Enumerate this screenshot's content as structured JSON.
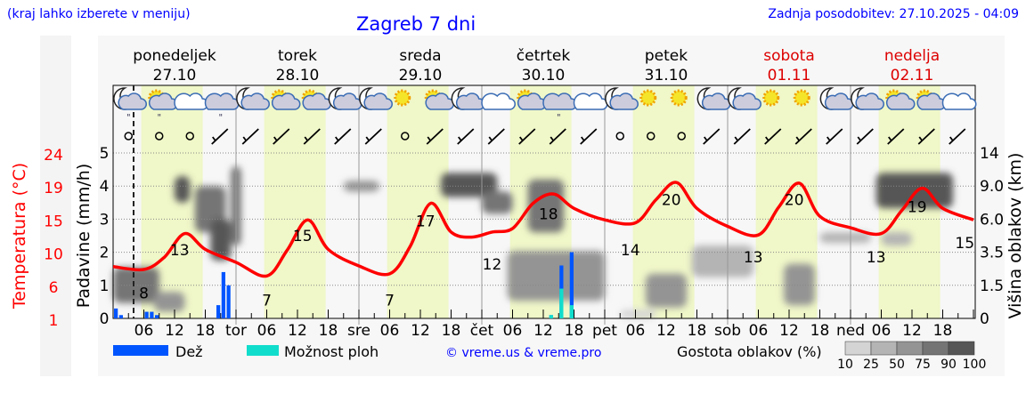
{
  "header": {
    "hint": "(kraj lahko izberete v meniju)",
    "title": "Zagreb 7 dni",
    "updated": "Zadnja posodobitev: 27.10.2025 - 04:09"
  },
  "days": [
    {
      "name": "ponedeljek",
      "date": "27.10",
      "weekend": false
    },
    {
      "name": "torek",
      "date": "28.10",
      "weekend": false
    },
    {
      "name": "sreda",
      "date": "29.10",
      "weekend": false
    },
    {
      "name": "četrtek",
      "date": "30.10",
      "weekend": false
    },
    {
      "name": "petek",
      "date": "31.10",
      "weekend": false
    },
    {
      "name": "sobota",
      "date": "01.11",
      "weekend": true
    },
    {
      "name": "nedelja",
      "date": "02.11",
      "weekend": true
    }
  ],
  "colors": {
    "temperature": "#ff0000",
    "rain": "#0055ff",
    "shower_chance": "#11ddcc",
    "daylight": "#f0f7c8",
    "weekend": "#dd0000",
    "link": "#0000ff"
  },
  "weather_icons": [
    "moon-cloud-rain",
    "sun-cloud-rain",
    "cloud",
    "cloud-rain",
    "moon-cloud",
    "sun-cloud",
    "sun-cloud",
    "moon-cloud",
    "moon-cloud",
    "sun",
    "sun-cloud",
    "moon-cloud",
    "cloud",
    "sun-cloud",
    "cloud-rain",
    "cloud",
    "moon-cloud",
    "sun",
    "sun",
    "moon-cloud",
    "moon-cloud",
    "sun",
    "sun",
    "moon-cloud",
    "moon-cloud",
    "sun-cloud",
    "sun-cloud",
    "cloud"
  ],
  "chart_data": {
    "type": "line",
    "now_hour": 4,
    "x_ticks": [
      "06",
      "12",
      "18",
      "tor",
      "06",
      "12",
      "18",
      "sre",
      "06",
      "12",
      "18",
      "čet",
      "06",
      "12",
      "18",
      "pet",
      "06",
      "12",
      "18",
      "sob",
      "06",
      "12",
      "18",
      "ned",
      "06",
      "12",
      "18"
    ],
    "left_axis_temp": {
      "label": "Temperatura (°C)",
      "ticks": [
        "24",
        "19",
        "15",
        "10",
        "6",
        "1"
      ],
      "range": [
        1,
        24
      ]
    },
    "left_axis_precip": {
      "label": "Padavine (mm/h)",
      "ticks": [
        "5",
        "4",
        "3",
        "2",
        "1",
        "0"
      ],
      "range": [
        0,
        5
      ]
    },
    "right_axis": {
      "label": "Višina oblakov (km)",
      "ticks": [
        "14",
        "9.0",
        "6.0",
        "3.5",
        "1.5",
        "0"
      ]
    },
    "grid": true,
    "temperature": {
      "hours": [
        0,
        6,
        10,
        14,
        18,
        24,
        30,
        34,
        38,
        42,
        48,
        54,
        58,
        62,
        66,
        70,
        74,
        78,
        82,
        86,
        90,
        96,
        102,
        106,
        110,
        114,
        120,
        126,
        130,
        134,
        138,
        144,
        150,
        154,
        158,
        162,
        168
      ],
      "values": [
        8.2,
        7.8,
        9.5,
        12.8,
        10.6,
        8.8,
        6.9,
        10.5,
        14.7,
        10.6,
        8.3,
        7.2,
        11,
        17,
        13,
        12.3,
        13,
        13.5,
        17,
        18.3,
        16.3,
        14.7,
        14.3,
        17.5,
        19.9,
        16.3,
        13.8,
        12.6,
        16.5,
        19.8,
        15.2,
        13.6,
        12.8,
        16,
        19.1,
        16.3,
        14.7
      ]
    },
    "temperature_labels": [
      {
        "hour": 6,
        "text": "8"
      },
      {
        "hour": 13,
        "text": "13"
      },
      {
        "hour": 30,
        "text": "7"
      },
      {
        "hour": 37,
        "text": "15"
      },
      {
        "hour": 54,
        "text": "7"
      },
      {
        "hour": 61,
        "text": "17"
      },
      {
        "hour": 74,
        "text": "12"
      },
      {
        "hour": 85,
        "text": "18"
      },
      {
        "hour": 101,
        "text": "14"
      },
      {
        "hour": 109,
        "text": "20"
      },
      {
        "hour": 125,
        "text": "13"
      },
      {
        "hour": 133,
        "text": "20"
      },
      {
        "hour": 149,
        "text": "13"
      },
      {
        "hour": 157,
        "text": "19"
      },
      {
        "hour": 167,
        "text": "15"
      }
    ],
    "precipitation": {
      "hours": [
        0,
        1,
        6,
        7,
        8,
        20,
        21,
        22,
        85,
        87,
        89
      ],
      "rain": [
        0.3,
        0.1,
        0.2,
        0.2,
        0.1,
        0.4,
        1.4,
        1.0,
        0.1,
        1.6,
        2.0
      ],
      "shower_chance": [
        0,
        0,
        0,
        0,
        0,
        0,
        0,
        0,
        0.1,
        0.9,
        0.4
      ]
    },
    "cloud_density": [
      {
        "from_hour": 0,
        "to_hour": 9,
        "low_km": 0.7,
        "high_km": 2.6,
        "density": 75
      },
      {
        "from_hour": 8,
        "to_hour": 14,
        "low_km": 0.3,
        "high_km": 1.2,
        "density": 50
      },
      {
        "from_hour": 12,
        "to_hour": 15,
        "low_km": 7.5,
        "high_km": 10.5,
        "density": 90
      },
      {
        "from_hour": 16,
        "to_hour": 22,
        "low_km": 5,
        "high_km": 9,
        "density": 75
      },
      {
        "from_hour": 19,
        "to_hour": 23,
        "low_km": 3,
        "high_km": 6,
        "density": 90
      },
      {
        "from_hour": 23,
        "to_hour": 25,
        "low_km": 4,
        "high_km": 12,
        "density": 75
      },
      {
        "from_hour": 45,
        "to_hour": 52,
        "low_km": 8.5,
        "high_km": 9.8,
        "density": 50
      },
      {
        "from_hour": 64,
        "to_hour": 75,
        "low_km": 8,
        "high_km": 11,
        "density": 90
      },
      {
        "from_hour": 72,
        "to_hour": 78,
        "low_km": 6.5,
        "high_km": 8.5,
        "density": 75
      },
      {
        "from_hour": 81,
        "to_hour": 88,
        "low_km": 5,
        "high_km": 10,
        "density": 75
      },
      {
        "from_hour": 77,
        "to_hour": 96,
        "low_km": 0.8,
        "high_km": 3.6,
        "density": 50
      },
      {
        "from_hour": 99,
        "to_hour": 106,
        "low_km": 0,
        "high_km": 0.4,
        "density": 10
      },
      {
        "from_hour": 104,
        "to_hour": 112,
        "low_km": 0.5,
        "high_km": 2.2,
        "density": 50
      },
      {
        "from_hour": 113,
        "to_hour": 125,
        "low_km": 2,
        "high_km": 4,
        "density": 25
      },
      {
        "from_hour": 131,
        "to_hour": 137,
        "low_km": 0.6,
        "high_km": 2.8,
        "density": 50
      },
      {
        "from_hour": 138,
        "to_hour": 148,
        "low_km": 4.2,
        "high_km": 5,
        "density": 25
      },
      {
        "from_hour": 150,
        "to_hour": 156,
        "low_km": 4,
        "high_km": 5,
        "density": 25
      },
      {
        "from_hour": 149,
        "to_hour": 164,
        "low_km": 7,
        "high_km": 11,
        "density": 90
      }
    ]
  },
  "legend": {
    "rain": "Dež",
    "shower": "Možnost ploh",
    "copyright": "© vreme.us & vreme.pro",
    "cloud_title": "Gostota oblakov (%)",
    "cloud_levels": [
      "10",
      "25",
      "50",
      "75",
      "90",
      "100"
    ],
    "cloud_colors": [
      "#d4d4d4",
      "#b4b4b4",
      "#949494",
      "#747474",
      "#565656"
    ]
  }
}
